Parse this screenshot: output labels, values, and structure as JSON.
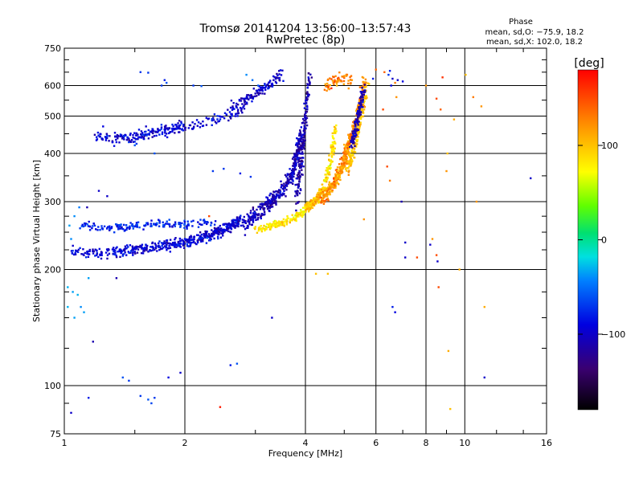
{
  "chart_data": {
    "type": "scatter",
    "title": "Tromsø 20141204 13:56:00–13:57:43",
    "subtitle": "RwPretec (8p)",
    "xlabel": "Frequency [MHz]",
    "ylabel": "Stationary phase Virtual Height [km]",
    "x_scale": "log",
    "y_scale": "log",
    "xlim": [
      1,
      16
    ],
    "ylim": [
      75,
      750
    ],
    "x_ticks": [
      1,
      2,
      4,
      6,
      8,
      10,
      16
    ],
    "x_tick_labels": [
      "1",
      "2",
      "4",
      "6",
      "8",
      "10",
      "16"
    ],
    "y_ticks": [
      75,
      100,
      200,
      300,
      400,
      500,
      600,
      750
    ],
    "y_tick_labels": [
      "75",
      "100",
      "200",
      "300",
      "400",
      "500",
      "600",
      "750"
    ],
    "grid": true,
    "phase_legend": {
      "title": "Phase",
      "line_o": "mean, sd,O: −75.9, 18.2",
      "line_x": "mean, sd,X: 102.0, 18.2"
    },
    "colorbar": {
      "label": "[deg]",
      "range": [
        -180,
        180
      ],
      "ticks": [
        100,
        0,
        -100
      ],
      "tick_labels": [
        "100",
        "0",
        "−100"
      ]
    },
    "traces": [
      {
        "f": [
          1.05,
          1.15,
          1.25,
          1.35,
          1.45,
          1.55,
          1.65,
          1.75,
          1.85,
          1.95,
          2.05,
          2.15,
          2.25,
          2.35,
          2.45,
          2.55,
          2.65,
          2.75
        ],
        "h": [
          225,
          222,
          220,
          222,
          224,
          226,
          228,
          230,
          232,
          234,
          236,
          240,
          244,
          248,
          252,
          256,
          262,
          270
        ],
        "phase": -95,
        "spread": 8,
        "n": 520
      },
      {
        "f": [
          1.1,
          1.2,
          1.3,
          1.4,
          1.5,
          1.6,
          1.7,
          1.8,
          1.9,
          2.0,
          2.2,
          2.4
        ],
        "h": [
          262,
          258,
          256,
          258,
          260,
          262,
          262,
          264,
          262,
          262,
          264,
          266
        ],
        "phase": -75,
        "spread": 6,
        "n": 180
      },
      {
        "f": [
          1.2,
          1.3,
          1.4,
          1.5,
          1.6,
          1.7,
          1.8,
          1.9,
          2.0,
          2.2,
          2.4,
          2.6,
          2.8
        ],
        "h": [
          445,
          440,
          438,
          440,
          448,
          455,
          460,
          465,
          470,
          478,
          490,
          505,
          520
        ],
        "phase": -95,
        "spread": 9,
        "n": 260
      },
      {
        "f": [
          2.6,
          2.8,
          2.9,
          3.0,
          3.1,
          3.2,
          3.3,
          3.4,
          3.5
        ],
        "h": [
          530,
          550,
          560,
          570,
          585,
          600,
          615,
          625,
          640
        ],
        "phase": -100,
        "spread": 10,
        "n": 110
      },
      {
        "f": [
          2.8,
          2.9,
          3.0,
          3.1,
          3.2,
          3.3,
          3.4,
          3.5,
          3.6,
          3.7,
          3.75,
          3.8,
          3.85,
          3.9
        ],
        "h": [
          262,
          268,
          276,
          284,
          292,
          300,
          310,
          320,
          335,
          352,
          370,
          392,
          420,
          450
        ],
        "phase": -105,
        "spread": 12,
        "n": 380
      },
      {
        "f": [
          3.8,
          3.85,
          3.9,
          3.95,
          4.0,
          4.05,
          4.1
        ],
        "h": [
          300,
          340,
          390,
          440,
          490,
          560,
          640
        ],
        "phase": -110,
        "spread": 15,
        "n": 180
      },
      {
        "f": [
          3.0,
          3.2,
          3.4,
          3.6,
          3.8,
          4.0,
          4.2,
          4.4,
          4.5,
          4.6,
          4.7,
          4.75
        ],
        "h": [
          255,
          258,
          262,
          268,
          275,
          285,
          300,
          320,
          345,
          375,
          420,
          480
        ],
        "phase": 85,
        "spread": 6,
        "n": 300
      },
      {
        "f": [
          4.0,
          4.2,
          4.4,
          4.6,
          4.8,
          5.0,
          5.1,
          5.2
        ],
        "h": [
          290,
          300,
          312,
          326,
          345,
          372,
          410,
          460
        ],
        "phase": 110,
        "spread": 8,
        "n": 260
      },
      {
        "f": [
          4.4,
          4.6,
          4.8,
          5.0,
          5.2,
          5.4,
          5.5,
          5.6
        ],
        "h": [
          300,
          320,
          350,
          390,
          440,
          500,
          560,
          620
        ],
        "phase": 125,
        "spread": 9,
        "n": 240
      },
      {
        "f": [
          5.1,
          5.2,
          5.3,
          5.4,
          5.5,
          5.6,
          5.7
        ],
        "h": [
          360,
          390,
          420,
          460,
          500,
          550,
          610
        ],
        "phase": 100,
        "spread": 8,
        "n": 170
      },
      {
        "f": [
          5.2,
          5.3,
          5.4,
          5.5,
          5.6
        ],
        "h": [
          420,
          450,
          490,
          540,
          590
        ],
        "phase": -110,
        "spread": 8,
        "n": 120
      },
      {
        "f": [
          4.5,
          4.8,
          5.0,
          5.3
        ],
        "h": [
          600,
          620,
          630,
          610
        ],
        "phase": 130,
        "spread": 10,
        "n": 60
      }
    ],
    "points": [
      [
        1.02,
        180,
        -30
      ],
      [
        1.05,
        175,
        -35
      ],
      [
        1.08,
        172,
        -30
      ],
      [
        1.1,
        160,
        -40
      ],
      [
        1.12,
        155,
        -35
      ],
      [
        1.15,
        190,
        -35
      ],
      [
        1.02,
        160,
        -30
      ],
      [
        1.06,
        150,
        -35
      ],
      [
        1.04,
        240,
        -40
      ],
      [
        1.03,
        260,
        -35
      ],
      [
        1.06,
        275,
        -40
      ],
      [
        1.09,
        290,
        -45
      ],
      [
        1.14,
        290,
        -110
      ],
      [
        1.18,
        130,
        -110
      ],
      [
        1.22,
        320,
        -100
      ],
      [
        1.28,
        310,
        -100
      ],
      [
        1.35,
        190,
        -110
      ],
      [
        1.4,
        105,
        -60
      ],
      [
        1.45,
        103,
        -70
      ],
      [
        1.62,
        92,
        -60
      ],
      [
        1.65,
        90,
        -65
      ],
      [
        1.55,
        94,
        -70
      ],
      [
        1.68,
        93,
        -70
      ],
      [
        1.15,
        93,
        -80
      ],
      [
        1.04,
        85,
        -100
      ],
      [
        1.82,
        105,
        -90
      ],
      [
        1.95,
        108,
        -100
      ],
      [
        2.45,
        88,
        170
      ],
      [
        2.6,
        113,
        -80
      ],
      [
        2.7,
        114,
        -60
      ],
      [
        2.1,
        600,
        -70
      ],
      [
        2.2,
        598,
        -60
      ],
      [
        1.75,
        600,
        -70
      ],
      [
        1.8,
        610,
        -60
      ],
      [
        1.55,
        650,
        -70
      ],
      [
        1.62,
        648,
        -70
      ],
      [
        1.78,
        620,
        -80
      ],
      [
        2.85,
        640,
        -40
      ],
      [
        2.95,
        620,
        -50
      ],
      [
        3.05,
        600,
        -60
      ],
      [
        1.6,
        470,
        -100
      ],
      [
        1.25,
        470,
        -90
      ],
      [
        1.5,
        420,
        -60
      ],
      [
        1.68,
        400,
        -60
      ],
      [
        2.35,
        360,
        -70
      ],
      [
        2.5,
        365,
        -70
      ],
      [
        2.75,
        355,
        -80
      ],
      [
        2.92,
        348,
        -70
      ],
      [
        6.0,
        660,
        140
      ],
      [
        6.5,
        655,
        -80
      ],
      [
        6.45,
        640,
        -70
      ],
      [
        6.6,
        625,
        -100
      ],
      [
        6.8,
        620,
        -100
      ],
      [
        7.0,
        615,
        -90
      ],
      [
        6.55,
        600,
        -90
      ],
      [
        6.7,
        610,
        130
      ],
      [
        6.3,
        650,
        140
      ],
      [
        5.9,
        625,
        -80
      ],
      [
        6.25,
        520,
        150
      ],
      [
        6.75,
        560,
        120
      ],
      [
        6.4,
        370,
        150
      ],
      [
        6.5,
        340,
        130
      ],
      [
        6.95,
        300,
        -110
      ],
      [
        7.1,
        235,
        -100
      ],
      [
        7.6,
        215,
        150
      ],
      [
        7.1,
        215,
        -100
      ],
      [
        8.0,
        600,
        120
      ],
      [
        8.3,
        240,
        120
      ],
      [
        8.5,
        218,
        150
      ],
      [
        8.55,
        210,
        -100
      ],
      [
        8.2,
        232,
        -100
      ],
      [
        8.6,
        180,
        150
      ],
      [
        8.5,
        555,
        150
      ],
      [
        8.7,
        520,
        140
      ],
      [
        9.05,
        400,
        100
      ],
      [
        9.0,
        360,
        120
      ],
      [
        9.1,
        123,
        110
      ],
      [
        9.2,
        87,
        100
      ],
      [
        9.4,
        490,
        110
      ],
      [
        9.7,
        200,
        110
      ],
      [
        10.05,
        640,
        100
      ],
      [
        10.5,
        560,
        130
      ],
      [
        10.7,
        300,
        120
      ],
      [
        11.0,
        530,
        120
      ],
      [
        11.2,
        160,
        110
      ],
      [
        11.2,
        105,
        -100
      ],
      [
        14.6,
        345,
        -100
      ],
      [
        6.7,
        155,
        -90
      ],
      [
        6.6,
        160,
        -80
      ],
      [
        5.2,
        620,
        120
      ],
      [
        8.8,
        630,
        160
      ],
      [
        4.25,
        195,
        100
      ],
      [
        4.55,
        195,
        100
      ],
      [
        5.6,
        270,
        120
      ],
      [
        3.3,
        150,
        -100
      ],
      [
        2.3,
        275,
        150
      ]
    ]
  }
}
